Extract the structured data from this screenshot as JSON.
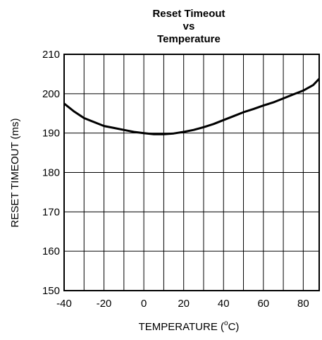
{
  "chart_data": {
    "type": "line",
    "title_lines": [
      "Reset Timeout",
      "vs",
      "Temperature"
    ],
    "xlabel": "TEMPERATURE (",
    "xlabel_sup": "o",
    "xlabel_unit": "C)",
    "ylabel": "RESET TIMEOUT (ms)",
    "xlim": [
      -40,
      88
    ],
    "ylim": [
      150,
      210
    ],
    "x_ticks": [
      -40,
      -20,
      0,
      20,
      40,
      60,
      80
    ],
    "x_tick_labels": [
      "-40",
      "-20",
      "0",
      "20",
      "40",
      "60",
      "80"
    ],
    "x_grid": [
      -40,
      -30,
      -20,
      -10,
      0,
      10,
      20,
      30,
      40,
      50,
      60,
      70,
      80
    ],
    "y_ticks": [
      150,
      160,
      170,
      180,
      190,
      200,
      210
    ],
    "y_tick_labels": [
      "150",
      "160",
      "170",
      "180",
      "190",
      "200",
      "210"
    ],
    "grid": true,
    "series": [
      {
        "x": [
          -40,
          -35,
          -30,
          -25,
          -20,
          -15,
          -10,
          -5,
          0,
          5,
          10,
          15,
          20,
          25,
          30,
          35,
          40,
          45,
          50,
          55,
          60,
          65,
          70,
          75,
          80,
          85,
          88
        ],
        "y": [
          197.5,
          195.5,
          193.8,
          192.8,
          191.8,
          191.3,
          190.8,
          190.3,
          190.0,
          189.7,
          189.7,
          189.9,
          190.3,
          190.8,
          191.5,
          192.3,
          193.3,
          194.3,
          195.3,
          196.1,
          197.0,
          197.8,
          198.8,
          199.8,
          200.8,
          202.2,
          203.8
        ]
      }
    ]
  }
}
